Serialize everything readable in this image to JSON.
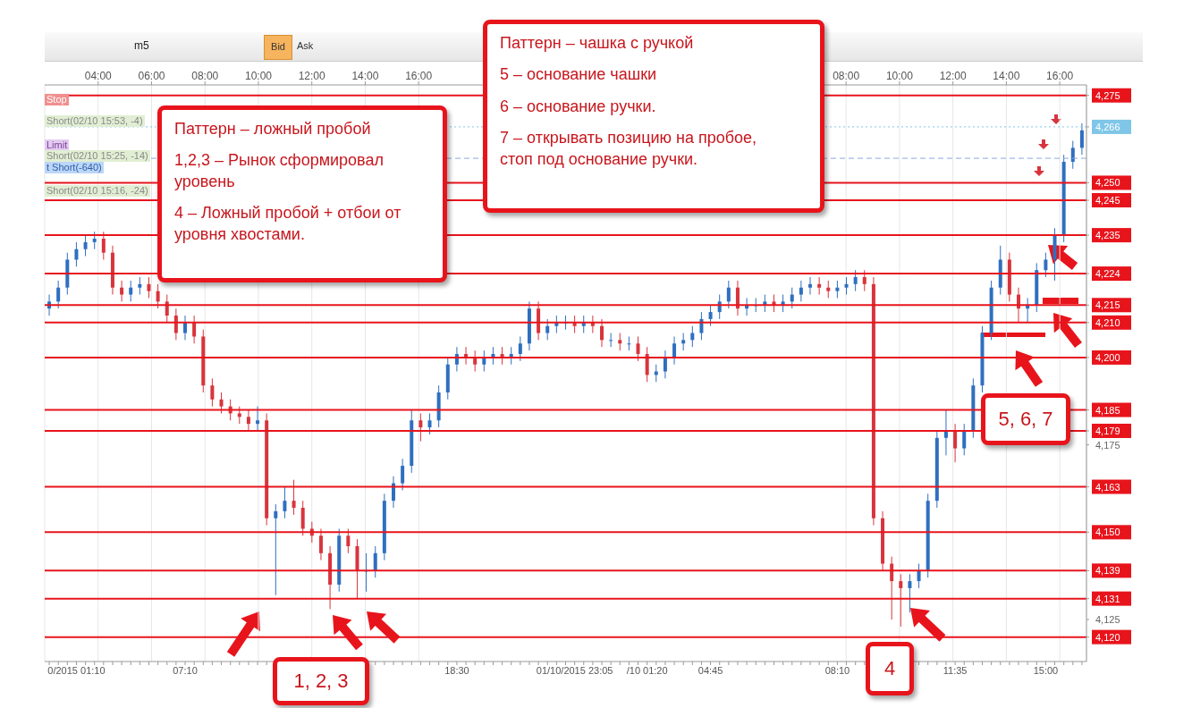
{
  "chart_data": {
    "type": "candlestick",
    "categories": [
      null,
      null,
      null,
      "0/2015 01:10",
      null,
      null,
      null,
      null,
      null,
      null,
      null,
      null,
      null,
      null,
      null,
      "07:10",
      null,
      null,
      null,
      null,
      null,
      null,
      null,
      null,
      null,
      null,
      null,
      null,
      null,
      null,
      null,
      null,
      null,
      null,
      null,
      null,
      null,
      null,
      null,
      null,
      null,
      null,
      null,
      null,
      null,
      "18:30",
      null,
      null,
      null,
      null,
      null,
      null,
      null,
      null,
      null,
      null,
      null,
      null,
      "01/10/2015 23:05",
      null,
      null,
      null,
      null,
      null,
      null,
      null,
      "/10 01:20",
      null,
      null,
      null,
      null,
      null,
      null,
      "04:45",
      null,
      null,
      null,
      null,
      null,
      null,
      null,
      null,
      null,
      null,
      null,
      null,
      null,
      "08:10",
      null,
      null,
      null,
      null,
      null,
      null,
      null,
      null,
      null,
      null,
      null,
      null,
      "11:35",
      null,
      null,
      null,
      null,
      null,
      null,
      null,
      null,
      null,
      "15:00",
      null,
      null,
      null,
      null
    ],
    "ohlc": [
      [
        4214,
        4218,
        4212,
        4216
      ],
      [
        4216,
        4222,
        4214,
        4220
      ],
      [
        4220,
        4230,
        4218,
        4228
      ],
      [
        4228,
        4233,
        4226,
        4231
      ],
      [
        4231,
        4235,
        4229,
        4233
      ],
      [
        4233,
        4236,
        4231,
        4234
      ],
      [
        4234,
        4236,
        4228,
        4230
      ],
      [
        4230,
        4232,
        4218,
        4220
      ],
      [
        4220,
        4222,
        4216,
        4218
      ],
      [
        4218,
        4222,
        4216,
        4220
      ],
      [
        4220,
        4223,
        4218,
        4221
      ],
      [
        4221,
        4223,
        4217,
        4219
      ],
      [
        4219,
        4221,
        4214,
        4216
      ],
      [
        4216,
        4218,
        4210,
        4212
      ],
      [
        4212,
        4214,
        4205,
        4207
      ],
      [
        4207,
        4212,
        4205,
        4210
      ],
      [
        4210,
        4212,
        4204,
        4206
      ],
      [
        4206,
        4208,
        4190,
        4192
      ],
      [
        4192,
        4194,
        4186,
        4188
      ],
      [
        4188,
        4190,
        4184,
        4186
      ],
      [
        4186,
        4188,
        4182,
        4184
      ],
      [
        4184,
        4186,
        4181,
        4183
      ],
      [
        4183,
        4185,
        4179,
        4181
      ],
      [
        4181,
        4186,
        4179,
        4182
      ],
      [
        4182,
        4184,
        4152,
        4154
      ],
      [
        4154,
        4158,
        4132,
        4156
      ],
      [
        4156,
        4163,
        4154,
        4159
      ],
      [
        4159,
        4165,
        4155,
        4157
      ],
      [
        4157,
        4159,
        4149,
        4151
      ],
      [
        4151,
        4153,
        4147,
        4149
      ],
      [
        4149,
        4151,
        4142,
        4144
      ],
      [
        4144,
        4146,
        4128,
        4135
      ],
      [
        4135,
        4151,
        4133,
        4149
      ],
      [
        4149,
        4151,
        4144,
        4146
      ],
      [
        4146,
        4148,
        4131,
        4139
      ],
      [
        4139,
        4144,
        4133,
        4139
      ],
      [
        4139,
        4146,
        4137,
        4144
      ],
      [
        4144,
        4161,
        4142,
        4159
      ],
      [
        4159,
        4166,
        4157,
        4164
      ],
      [
        4164,
        4171,
        4162,
        4169
      ],
      [
        4169,
        4185,
        4167,
        4182
      ],
      [
        4182,
        4184,
        4176,
        4180
      ],
      [
        4180,
        4184,
        4178,
        4182
      ],
      [
        4182,
        4192,
        4180,
        4190
      ],
      [
        4190,
        4200,
        4188,
        4198
      ],
      [
        4198,
        4203,
        4196,
        4201
      ],
      [
        4201,
        4203,
        4198,
        4200
      ],
      [
        4200,
        4202,
        4196,
        4198
      ],
      [
        4198,
        4202,
        4196,
        4200
      ],
      [
        4200,
        4203,
        4198,
        4201
      ],
      [
        4201,
        4203,
        4198,
        4200
      ],
      [
        4200,
        4203,
        4198,
        4201
      ],
      [
        4201,
        4206,
        4199,
        4204
      ],
      [
        4204,
        4216,
        4202,
        4214
      ],
      [
        4214,
        4216,
        4205,
        4207
      ],
      [
        4207,
        4211,
        4205,
        4209
      ],
      [
        4209,
        4212,
        4207,
        4210
      ],
      [
        4210,
        4212,
        4208,
        4210
      ],
      [
        4210,
        4212,
        4207,
        4209
      ],
      [
        4209,
        4212,
        4207,
        4210
      ],
      [
        4210,
        4212,
        4207,
        4209
      ],
      [
        4209,
        4211,
        4203,
        4205
      ],
      [
        4205,
        4207,
        4203,
        4205
      ],
      [
        4205,
        4207,
        4202,
        4204
      ],
      [
        4204,
        4206,
        4202,
        4204
      ],
      [
        4204,
        4206,
        4199,
        4201
      ],
      [
        4201,
        4203,
        4193,
        4195
      ],
      [
        4195,
        4198,
        4193,
        4196
      ],
      [
        4196,
        4202,
        4194,
        4200
      ],
      [
        4200,
        4206,
        4198,
        4204
      ],
      [
        4204,
        4207,
        4202,
        4205
      ],
      [
        4205,
        4209,
        4203,
        4207
      ],
      [
        4207,
        4213,
        4205,
        4211
      ],
      [
        4211,
        4215,
        4209,
        4213
      ],
      [
        4213,
        4218,
        4211,
        4216
      ],
      [
        4216,
        4222,
        4214,
        4220
      ],
      [
        4220,
        4222,
        4212,
        4214
      ],
      [
        4214,
        4217,
        4212,
        4215
      ],
      [
        4215,
        4217,
        4213,
        4215
      ],
      [
        4215,
        4218,
        4213,
        4216
      ],
      [
        4216,
        4218,
        4213,
        4215
      ],
      [
        4215,
        4218,
        4213,
        4216
      ],
      [
        4216,
        4220,
        4214,
        4218
      ],
      [
        4218,
        4222,
        4216,
        4220
      ],
      [
        4220,
        4223,
        4218,
        4221
      ],
      [
        4221,
        4223,
        4218,
        4220
      ],
      [
        4220,
        4222,
        4217,
        4219
      ],
      [
        4219,
        4222,
        4217,
        4220
      ],
      [
        4220,
        4223,
        4218,
        4221
      ],
      [
        4221,
        4225,
        4219,
        4223
      ],
      [
        4223,
        4225,
        4219,
        4221
      ],
      [
        4221,
        4223,
        4152,
        4154
      ],
      [
        4154,
        4156,
        4139,
        4141
      ],
      [
        4141,
        4143,
        4125,
        4136
      ],
      [
        4136,
        4138,
        4123,
        4134
      ],
      [
        4134,
        4138,
        4127,
        4136
      ],
      [
        4136,
        4141,
        4134,
        4139
      ],
      [
        4139,
        4161,
        4137,
        4159
      ],
      [
        4159,
        4179,
        4157,
        4177
      ],
      [
        4177,
        4185,
        4172,
        4179
      ],
      [
        4179,
        4181,
        4170,
        4174
      ],
      [
        4174,
        4181,
        4172,
        4179
      ],
      [
        4179,
        4194,
        4177,
        4192
      ],
      [
        4192,
        4209,
        4190,
        4207
      ],
      [
        4207,
        4222,
        4205,
        4220
      ],
      [
        4220,
        4232,
        4218,
        4228
      ],
      [
        4228,
        4230,
        4216,
        4218
      ],
      [
        4218,
        4220,
        4210,
        4214
      ],
      [
        4214,
        4217,
        4210,
        4215
      ],
      [
        4215,
        4227,
        4213,
        4225
      ],
      [
        4225,
        4230,
        4223,
        4228
      ],
      [
        4228,
        4237,
        4222,
        4235
      ],
      [
        4235,
        4258,
        4233,
        4256
      ],
      [
        4256,
        4262,
        4254,
        4260
      ],
      [
        4260,
        4267,
        4258,
        4265
      ]
    ],
    "colors": [
      "#2f6fc0",
      "#2f6fc0",
      "#2f6fc0",
      "#2f6fc0",
      "#2f6fc0",
      "#2f6fc0",
      "#d8343c",
      "#d8343c",
      "#d8343c",
      "#2f6fc0",
      "#2f6fc0",
      "#d8343c",
      "#d8343c",
      "#d8343c",
      "#d8343c",
      "#2f6fc0",
      "#d8343c",
      "#d8343c",
      "#d8343c",
      "#d8343c",
      "#d8343c",
      "#d8343c",
      "#d8343c",
      "#2f6fc0",
      "#d8343c",
      "#2f6fc0",
      "#2f6fc0",
      "#d8343c",
      "#d8343c",
      "#d8343c",
      "#d8343c",
      "#d8343c",
      "#2f6fc0",
      "#d8343c",
      "#d8343c",
      "#2f6fc0",
      "#2f6fc0",
      "#2f6fc0",
      "#2f6fc0",
      "#2f6fc0",
      "#2f6fc0",
      "#d8343c",
      "#2f6fc0",
      "#2f6fc0",
      "#2f6fc0",
      "#2f6fc0",
      "#d8343c",
      "#d8343c",
      "#2f6fc0",
      "#2f6fc0",
      "#d8343c",
      "#2f6fc0",
      "#2f6fc0",
      "#2f6fc0",
      "#d8343c",
      "#2f6fc0",
      "#2f6fc0",
      "#2f6fc0",
      "#d8343c",
      "#2f6fc0",
      "#d8343c",
      "#d8343c",
      "#2f6fc0",
      "#d8343c",
      "#2f6fc0",
      "#d8343c",
      "#d8343c",
      "#2f6fc0",
      "#2f6fc0",
      "#2f6fc0",
      "#2f6fc0",
      "#2f6fc0",
      "#2f6fc0",
      "#2f6fc0",
      "#2f6fc0",
      "#2f6fc0",
      "#d8343c",
      "#2f6fc0",
      "#2f6fc0",
      "#2f6fc0",
      "#d8343c",
      "#2f6fc0",
      "#2f6fc0",
      "#2f6fc0",
      "#2f6fc0",
      "#d8343c",
      "#d8343c",
      "#2f6fc0",
      "#2f6fc0",
      "#2f6fc0",
      "#d8343c",
      "#d8343c",
      "#d8343c",
      "#d8343c",
      "#d8343c",
      "#2f6fc0",
      "#2f6fc0",
      "#2f6fc0",
      "#2f6fc0",
      "#2f6fc0",
      "#d8343c",
      "#2f6fc0",
      "#2f6fc0",
      "#2f6fc0",
      "#2f6fc0",
      "#2f6fc0",
      "#d8343c",
      "#d8343c",
      "#2f6fc0",
      "#2f6fc0",
      "#2f6fc0",
      "#2f6fc0",
      "#2f6fc0",
      "#2f6fc0",
      "#2f6fc0"
    ],
    "ylim": [
      4113,
      4278
    ],
    "yticks": [
      {
        "value": 4275,
        "label": "4,275"
      },
      {
        "value": 4266,
        "label": "4,266"
      },
      {
        "value": 4250,
        "label": "4,250"
      },
      {
        "value": 4245,
        "label": "4,245"
      },
      {
        "value": 4235,
        "label": "4,235"
      },
      {
        "value": 4224,
        "label": "4,224"
      },
      {
        "value": 4215,
        "label": "4,215"
      },
      {
        "value": 4210,
        "label": "4,210"
      },
      {
        "value": 4200,
        "label": "4,200"
      },
      {
        "value": 4185,
        "label": "4,185"
      },
      {
        "value": 4179,
        "label": "4,179"
      },
      {
        "value": 4175,
        "label": "4,175"
      },
      {
        "value": 4163,
        "label": "4,163"
      },
      {
        "value": 4150,
        "label": "4,150"
      },
      {
        "value": 4139,
        "label": "4,139"
      },
      {
        "value": 4131,
        "label": "4,131"
      },
      {
        "value": 4125,
        "label": "4,125"
      },
      {
        "value": 4120,
        "label": "4,120"
      }
    ],
    "x2lim": [
      "2015-10-01T02:00",
      "2015-10-02T17:00"
    ],
    "x2ticks": [
      {
        "value": "2015-10-01T04:00",
        "label": "04:00"
      },
      {
        "value": "2015-10-01T06:00",
        "label": "06:00"
      },
      {
        "value": "2015-10-01T08:00",
        "label": "08:00"
      },
      {
        "value": "2015-10-01T10:00",
        "label": "10:00"
      },
      {
        "value": "2015-10-01T12:00",
        "label": "12:00"
      },
      {
        "value": "2015-10-01T14:00",
        "label": "14:00"
      },
      {
        "value": "2015-10-01T16:00",
        "label": "16:00"
      },
      {
        "value": "2015-10-02T08:00",
        "label": "08:00"
      },
      {
        "value": "2015-10-02T10:00",
        "label": "10:00"
      },
      {
        "value": "2015-10-02T12:00",
        "label": "12:00"
      },
      {
        "value": "2015-10-02T14:00",
        "label": "14:00"
      },
      {
        "value": "2015-10-02T16:00",
        "label": "16:00"
      }
    ],
    "grid": "x",
    "ref_lines": [
      {
        "axis": "y",
        "value": 4275,
        "color": "#e8141c",
        "line_style": "solid"
      },
      {
        "axis": "y",
        "value": 4266,
        "color": "#7fc6e8",
        "line_style": "dotted"
      },
      {
        "axis": "y",
        "value": 4257,
        "color": "#8aa8e0",
        "line_style": "dashed"
      },
      {
        "axis": "y",
        "value": 4250,
        "color": "#e8141c",
        "line_style": "solid"
      },
      {
        "axis": "y",
        "value": 4245,
        "color": "#e8141c",
        "line_style": "solid"
      },
      {
        "axis": "y",
        "value": 4235,
        "color": "#e8141c",
        "line_style": "solid"
      },
      {
        "axis": "y",
        "value": 4224,
        "color": "#e8141c",
        "line_style": "solid"
      },
      {
        "axis": "y",
        "value": 4215,
        "color": "#e8141c",
        "line_style": "solid"
      },
      {
        "axis": "y",
        "value": 4210,
        "color": "#e8141c",
        "line_style": "solid"
      },
      {
        "axis": "y",
        "value": 4200,
        "color": "#e8141c",
        "line_style": "solid"
      },
      {
        "axis": "y",
        "value": 4185,
        "color": "#e8141c",
        "line_style": "solid"
      },
      {
        "axis": "y",
        "value": 4179,
        "color": "#e8141c",
        "line_style": "solid"
      },
      {
        "axis": "y",
        "value": 4163,
        "color": "#e8141c",
        "line_style": "solid"
      },
      {
        "axis": "y",
        "value": 4150,
        "color": "#e8141c",
        "line_style": "solid"
      },
      {
        "axis": "y",
        "value": 4139,
        "color": "#e8141c",
        "line_style": "solid"
      },
      {
        "axis": "y",
        "value": 4131,
        "color": "#e8141c",
        "line_style": "solid"
      },
      {
        "axis": "y",
        "value": 4120,
        "color": "#e8141c",
        "line_style": "solid"
      }
    ],
    "annotations": [
      "Паттерн – ложный пробой",
      "1,2,3 – Рынок сформировал уровень",
      "4 – Ложный пробой + отбои от уровня хвостами.",
      "Паттерн – чашка с ручкой",
      "5 – основание чашки",
      "6 – основание ручки.",
      "7 – открывать позицию на пробое, стоп под основание ручки.",
      "1, 2, 3",
      "4",
      "5, 6, 7",
      "Stop",
      "Short(02/10 15:53, -4)",
      "Limit",
      "Short(02/10 15:25, -14)",
      "t Short(-640)",
      "Short(02/10 15:16, -24)",
      "m5",
      "Bid",
      "Ask"
    ]
  }
}
